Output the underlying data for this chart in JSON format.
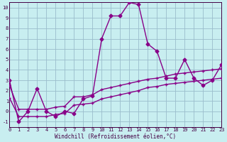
{
  "xlabel": "Windchill (Refroidissement éolien,°C)",
  "xlim": [
    0,
    23
  ],
  "ylim": [
    -1.5,
    10.5
  ],
  "xticks": [
    0,
    1,
    2,
    3,
    4,
    5,
    6,
    7,
    8,
    9,
    10,
    11,
    12,
    13,
    14,
    15,
    16,
    17,
    18,
    19,
    20,
    21,
    22,
    23
  ],
  "yticks": [
    -1,
    0,
    1,
    2,
    3,
    4,
    5,
    6,
    7,
    8,
    9,
    10
  ],
  "bg_color": "#c8eef0",
  "grid_color": "#9abccc",
  "line_color": "#880088",
  "line_width": 1.0,
  "marker_size": 2.5,
  "main_x": [
    0,
    1,
    2,
    3,
    4,
    5,
    6,
    7,
    8,
    9,
    10,
    11,
    12,
    13,
    14,
    15,
    16,
    17,
    18,
    19,
    20,
    21,
    22,
    23
  ],
  "main_y": [
    3.0,
    -1.0,
    0.0,
    2.2,
    0.0,
    -0.5,
    0.0,
    -0.2,
    1.2,
    1.5,
    7.0,
    9.2,
    9.2,
    10.5,
    10.3,
    6.5,
    5.8,
    3.2,
    3.2,
    5.0,
    3.2,
    2.5,
    3.0,
    4.5
  ],
  "band_upper_x": [
    0,
    1,
    2,
    3,
    4,
    5,
    6,
    7,
    8,
    9,
    10,
    11,
    12,
    13,
    14,
    15,
    16,
    17,
    18,
    19,
    20,
    21,
    22,
    23
  ],
  "band_upper_y": [
    2.5,
    0.2,
    0.2,
    0.2,
    0.2,
    0.4,
    0.5,
    1.4,
    1.4,
    1.6,
    2.1,
    2.3,
    2.5,
    2.7,
    2.9,
    3.1,
    3.2,
    3.4,
    3.6,
    3.7,
    3.8,
    3.9,
    4.0,
    4.1
  ],
  "band_lower_x": [
    0,
    1,
    2,
    3,
    4,
    5,
    6,
    7,
    8,
    9,
    10,
    11,
    12,
    13,
    14,
    15,
    16,
    17,
    18,
    19,
    20,
    21,
    22,
    23
  ],
  "band_lower_y": [
    1.3,
    -0.5,
    -0.5,
    -0.5,
    -0.5,
    -0.3,
    -0.2,
    0.6,
    0.7,
    0.8,
    1.2,
    1.4,
    1.6,
    1.8,
    2.0,
    2.3,
    2.4,
    2.6,
    2.7,
    2.8,
    2.9,
    3.0,
    3.1,
    3.2
  ]
}
